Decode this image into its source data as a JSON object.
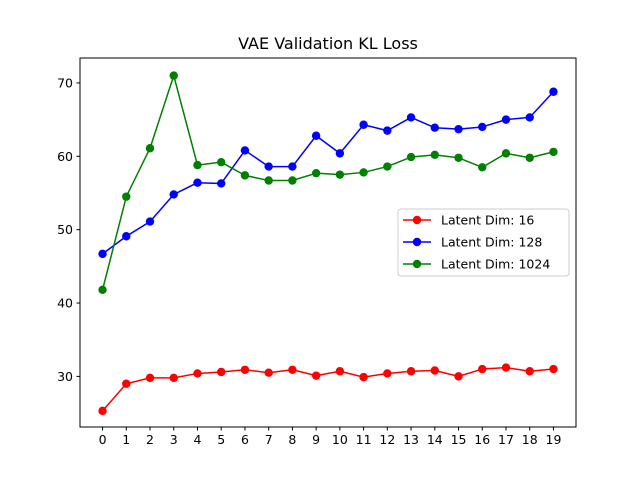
{
  "chart_data": {
    "type": "line",
    "title": "VAE Validation KL Loss",
    "xlabel": "",
    "ylabel": "",
    "x": [
      0,
      1,
      2,
      3,
      4,
      5,
      6,
      7,
      8,
      9,
      10,
      11,
      12,
      13,
      14,
      15,
      16,
      17,
      18,
      19
    ],
    "xlim": [
      -0.95,
      19.95
    ],
    "ylim": [
      23.1,
      73.4
    ],
    "yticks": [
      30,
      40,
      50,
      60,
      70
    ],
    "grid": false,
    "legend_position": "center-right",
    "series": [
      {
        "name": "Latent Dim: 16",
        "color": "#ff0000",
        "values": [
          25.3,
          29.0,
          29.8,
          29.8,
          30.4,
          30.6,
          30.9,
          30.5,
          30.9,
          30.1,
          30.7,
          29.9,
          30.4,
          30.7,
          30.8,
          30.0,
          31.0,
          31.2,
          30.7,
          31.0
        ]
      },
      {
        "name": "Latent Dim: 128",
        "color": "#0000ff",
        "values": [
          46.7,
          49.1,
          51.1,
          54.8,
          56.4,
          56.3,
          60.8,
          58.6,
          58.6,
          62.8,
          60.4,
          64.3,
          63.5,
          65.3,
          63.9,
          63.7,
          64.0,
          65.0,
          65.3,
          68.8
        ]
      },
      {
        "name": "Latent Dim: 1024",
        "color": "#008000",
        "values": [
          41.8,
          54.5,
          61.1,
          71.0,
          58.8,
          59.2,
          57.4,
          56.7,
          56.7,
          57.7,
          57.5,
          57.8,
          58.6,
          59.9,
          60.2,
          59.8,
          58.5,
          60.4,
          59.8,
          60.6
        ]
      }
    ]
  }
}
